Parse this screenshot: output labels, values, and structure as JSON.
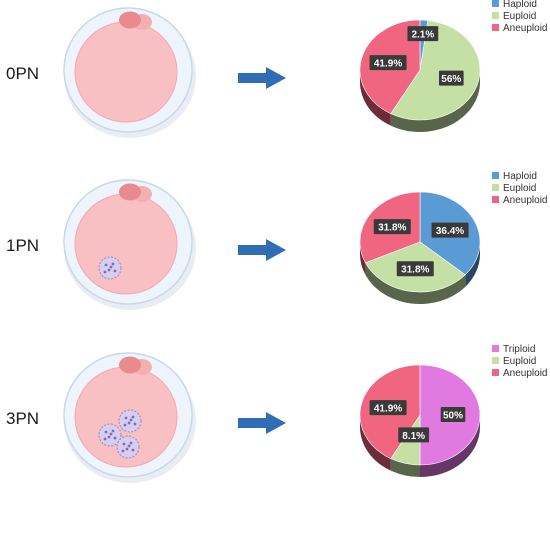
{
  "colors": {
    "haploid": "#5b9bd5",
    "euploid": "#c4e0a4",
    "aneuploid": "#f0657f",
    "triploid": "#e07ae0",
    "arrow": "#2f6db5",
    "cytoplasm": "#f9c0c4",
    "zona": "#eef4fb",
    "zona_edge": "#c7d8ec",
    "polar_body": "#e88a8e",
    "pronucleus": "#b9b1dc",
    "label_box": "#3a3a3a"
  },
  "rows": [
    {
      "stage_label": "0PN",
      "pronuclei": 0,
      "legend": [
        {
          "text": "Haploid",
          "color": "#5b9bd5"
        },
        {
          "text": "Euploid",
          "color": "#c4e0a4"
        },
        {
          "text": "Aneuploid",
          "color": "#f0657f"
        }
      ]
    },
    {
      "stage_label": "1PN",
      "pronuclei": 1,
      "legend": [
        {
          "text": "Haploid",
          "color": "#5b9bd5"
        },
        {
          "text": "Euploid",
          "color": "#c4e0a4"
        },
        {
          "text": "Aneuploid",
          "color": "#f0657f"
        }
      ]
    },
    {
      "stage_label": "3PN",
      "pronuclei": 3,
      "legend": [
        {
          "text": "Triploid",
          "color": "#e07ae0"
        },
        {
          "text": "Euploid",
          "color": "#c4e0a4"
        },
        {
          "text": "Aneuploid",
          "color": "#f0657f"
        }
      ]
    }
  ],
  "chart_data": [
    {
      "type": "pie",
      "categories": [
        "Haploid",
        "Euploid",
        "Aneuploid"
      ],
      "values": [
        2.1,
        56,
        41.9
      ],
      "labels": [
        "2.1%",
        "56%",
        "41.9%"
      ],
      "legend_position": "top-right"
    },
    {
      "type": "pie",
      "categories": [
        "Haploid",
        "Euploid",
        "Aneuploid"
      ],
      "values": [
        36.4,
        31.8,
        31.8
      ],
      "labels": [
        "36.4%",
        "31.8%",
        "31.8%"
      ],
      "legend_position": "top-right"
    },
    {
      "type": "pie",
      "categories": [
        "Triploid",
        "Euploid",
        "Aneuploid"
      ],
      "values": [
        50,
        8.1,
        41.9
      ],
      "labels": [
        "50%",
        "8.1%",
        "41.9%"
      ],
      "legend_position": "top-right"
    }
  ]
}
